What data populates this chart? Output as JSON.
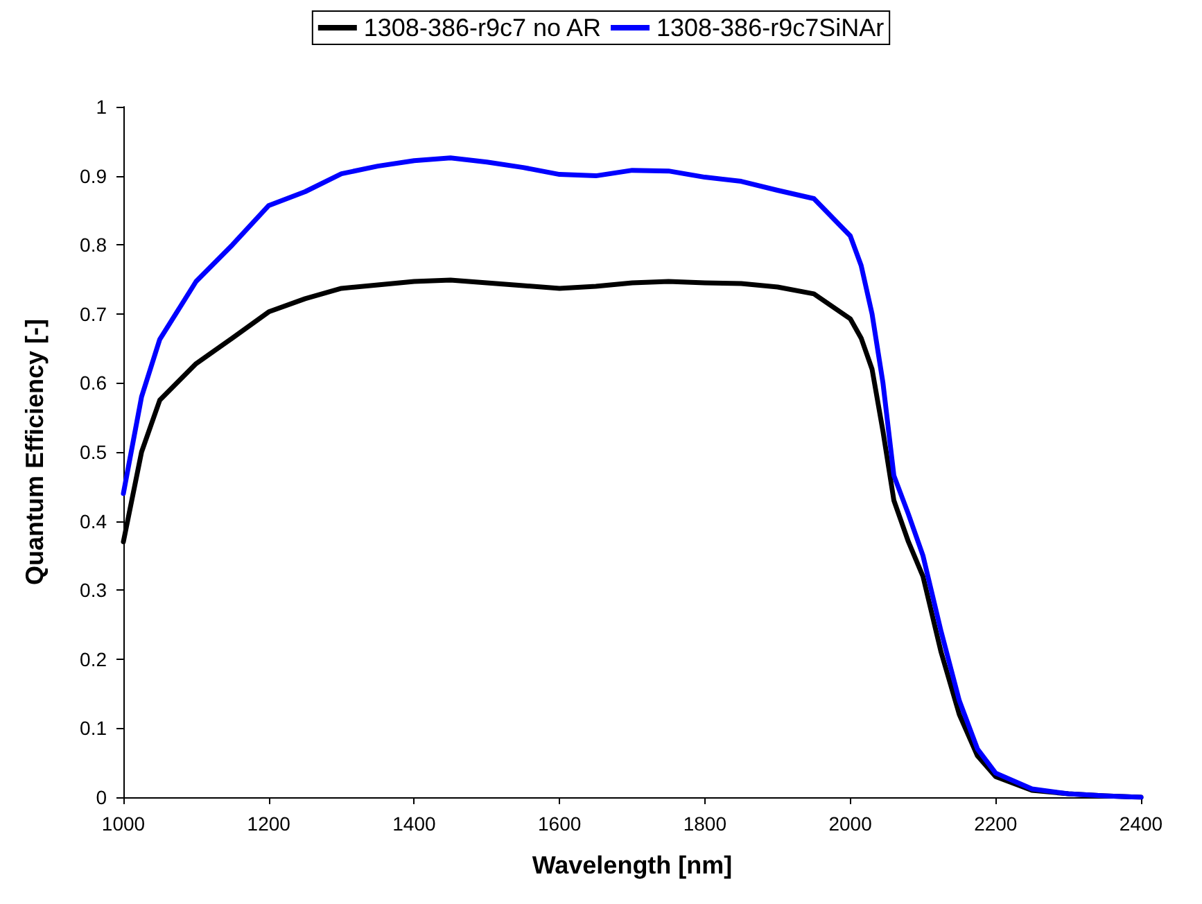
{
  "chart_data": {
    "type": "line",
    "xlabel": "Wavelength [nm]",
    "ylabel": "Quantum Efficiency [-]",
    "legend": "top",
    "grid": false,
    "marker": "none",
    "line_style": "solid",
    "xlim": [
      1000,
      2400
    ],
    "xticks": [
      1000,
      1200,
      1400,
      1600,
      1800,
      2000,
      2200,
      2400
    ],
    "ylim": [
      0,
      1
    ],
    "yticks": [
      0,
      0.1,
      0.2,
      0.3,
      0.4,
      0.5,
      0.6,
      0.7,
      0.8,
      0.9,
      1
    ],
    "x": [
      1000,
      1025,
      1050,
      1100,
      1150,
      1200,
      1250,
      1300,
      1350,
      1400,
      1450,
      1500,
      1550,
      1600,
      1650,
      1700,
      1750,
      1800,
      1850,
      1900,
      1950,
      2000,
      2015,
      2030,
      2045,
      2060,
      2080,
      2100,
      2125,
      2150,
      2175,
      2200,
      2250,
      2300,
      2350,
      2400
    ],
    "series": [
      {
        "name": "1308-386-r9c7 no AR",
        "color": "#000000",
        "values": [
          0.37,
          0.5,
          0.575,
          0.628,
          0.665,
          0.703,
          0.722,
          0.737,
          0.742,
          0.747,
          0.749,
          0.745,
          0.741,
          0.737,
          0.74,
          0.745,
          0.747,
          0.745,
          0.744,
          0.739,
          0.729,
          0.693,
          0.665,
          0.62,
          0.53,
          0.43,
          0.37,
          0.32,
          0.21,
          0.12,
          0.06,
          0.03,
          0.01,
          0.005,
          0.002,
          0
        ]
      },
      {
        "name": "1308-386-r9c7SiNAr",
        "color": "#0000ff",
        "values": [
          0.44,
          0.58,
          0.663,
          0.747,
          0.8,
          0.857,
          0.877,
          0.903,
          0.914,
          0.922,
          0.926,
          0.92,
          0.912,
          0.902,
          0.9,
          0.908,
          0.907,
          0.898,
          0.892,
          0.879,
          0.867,
          0.813,
          0.77,
          0.7,
          0.6,
          0.466,
          0.41,
          0.35,
          0.24,
          0.14,
          0.07,
          0.035,
          0.012,
          0.005,
          0.002,
          0
        ]
      }
    ]
  }
}
